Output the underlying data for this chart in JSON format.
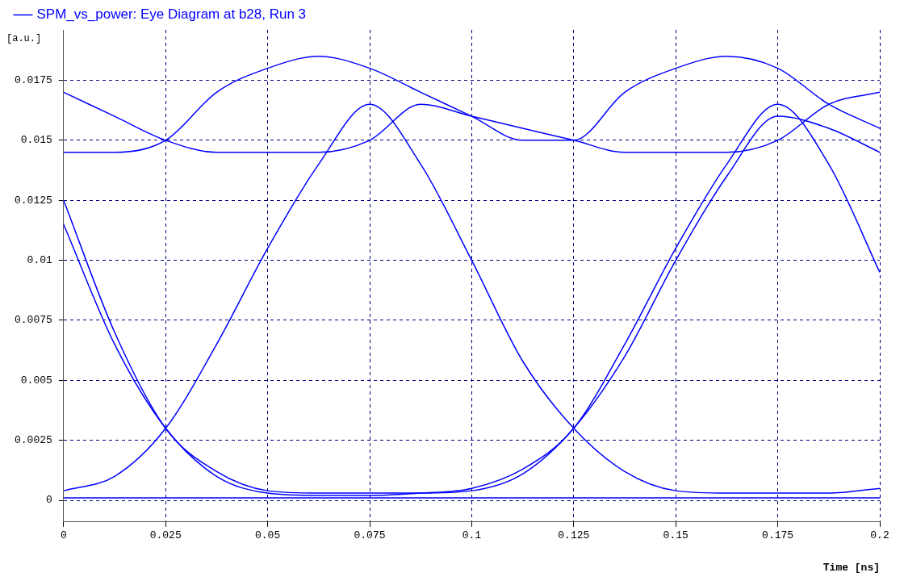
{
  "chart_data": {
    "type": "line",
    "xlabel": "Time [ns]",
    "ylabel": "[a.u.]",
    "x": [
      0,
      0.0125,
      0.025,
      0.0375,
      0.05,
      0.0625,
      0.075,
      0.0875,
      0.1,
      0.1125,
      0.125,
      0.1375,
      0.15,
      0.1625,
      0.175,
      0.1875,
      0.2
    ],
    "series": [
      {
        "name": "SPM_vs_power: Eye Diagram at b28, Run 3",
        "color": "#0000ff",
        "values": [
          0.017,
          0.016,
          0.015,
          0.0145,
          0.0145,
          0.0145,
          0.015,
          0.0165,
          0.016,
          0.0155,
          0.015,
          0.0145,
          0.0145,
          0.0145,
          0.015,
          0.0165,
          0.017
        ]
      },
      {
        "color": "#0000ff",
        "values": [
          0.0145,
          0.0145,
          0.015,
          0.017,
          0.018,
          0.0185,
          0.018,
          0.017,
          0.016,
          0.015,
          0.015,
          0.017,
          0.018,
          0.0185,
          0.018,
          0.0165,
          0.0155
        ]
      },
      {
        "color": "#0000ff",
        "values": [
          0.0004,
          0.001,
          0.003,
          0.0065,
          0.0105,
          0.014,
          0.0165,
          0.014,
          0.01,
          0.0058,
          0.003,
          0.0012,
          0.0004,
          0.0003,
          0.0003,
          0.0003,
          0.0005
        ]
      },
      {
        "color": "#0000ff",
        "values": [
          0.0115,
          0.0065,
          0.003,
          0.001,
          0.0003,
          0.0002,
          0.0002,
          0.0003,
          0.0005,
          0.0013,
          0.003,
          0.0065,
          0.0105,
          0.014,
          0.0165,
          0.014,
          0.0095
        ]
      },
      {
        "color": "#0000ff",
        "values": [
          0.0125,
          0.007,
          0.003,
          0.0012,
          0.0004,
          0.0003,
          0.0003,
          0.0003,
          0.0004,
          0.0011,
          0.003,
          0.006,
          0.01,
          0.0135,
          0.016,
          0.0155,
          0.0145
        ]
      },
      {
        "color": "#0000ff",
        "values": [
          0.0001,
          0.0001,
          0.0001,
          0.0001,
          0.0001,
          0.0001,
          0.0001,
          0.0001,
          0.0001,
          0.0001,
          0.0001,
          0.0001,
          0.0001,
          0.0001,
          0.0001,
          0.0001,
          0.0001
        ]
      }
    ],
    "xlim": [
      0,
      0.2
    ],
    "xticks": [
      0,
      0.025,
      0.05,
      0.075,
      0.1,
      0.125,
      0.15,
      0.175,
      0.2
    ],
    "ylim": [
      -0.0009,
      0.0196
    ],
    "yticks": [
      0,
      0.0025,
      0.005,
      0.0075,
      0.01,
      0.0125,
      0.015,
      0.0175
    ],
    "grid": true,
    "legend": "top",
    "marker": "none",
    "line_style": "solid"
  }
}
